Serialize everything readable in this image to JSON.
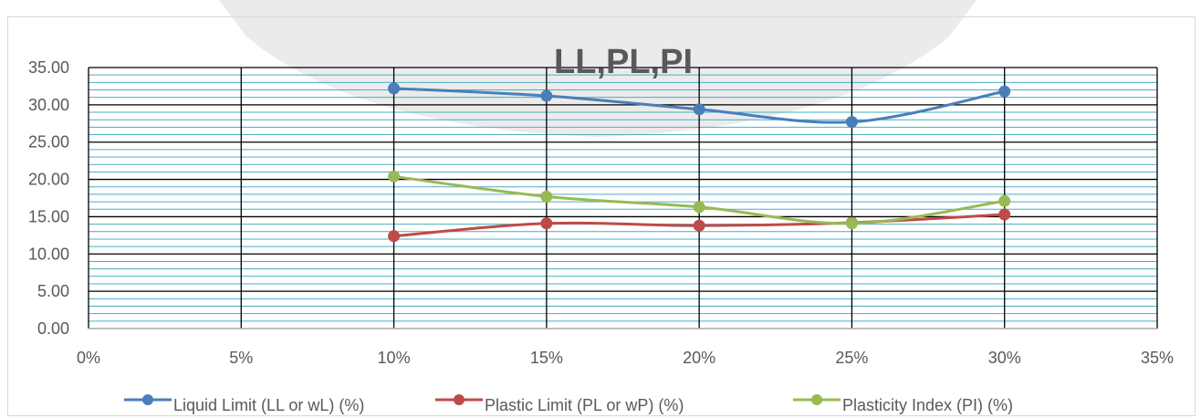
{
  "chart_data": {
    "type": "line",
    "title": "LL,PL,PI",
    "x": [
      0.1,
      0.15,
      0.2,
      0.25,
      0.3
    ],
    "xlim": [
      0,
      0.35
    ],
    "ylim": [
      0,
      35
    ],
    "x_ticks": [
      "0%",
      "5%",
      "10%",
      "15%",
      "20%",
      "25%",
      "30%",
      "35%"
    ],
    "y_ticks": [
      "0.00",
      "5.00",
      "10.00",
      "15.00",
      "20.00",
      "25.00",
      "30.00",
      "35.00"
    ],
    "grid": "major and minor horizontal, major vertical",
    "legend_position": "bottom",
    "series": [
      {
        "name": "Liquid Limit (LL or wL) (%)",
        "color": "#4a7ebb",
        "values": [
          32.2,
          31.2,
          29.4,
          27.7,
          31.8
        ]
      },
      {
        "name": "Plastic Limit (PL or wP) (%)",
        "color": "#be4b48",
        "values": [
          12.4,
          14.1,
          13.8,
          14.2,
          15.3
        ]
      },
      {
        "name": "Plasticity Index  (PI) (%)",
        "color": "#98b954",
        "values": [
          20.4,
          17.7,
          16.3,
          14.1,
          17.1
        ]
      }
    ]
  }
}
